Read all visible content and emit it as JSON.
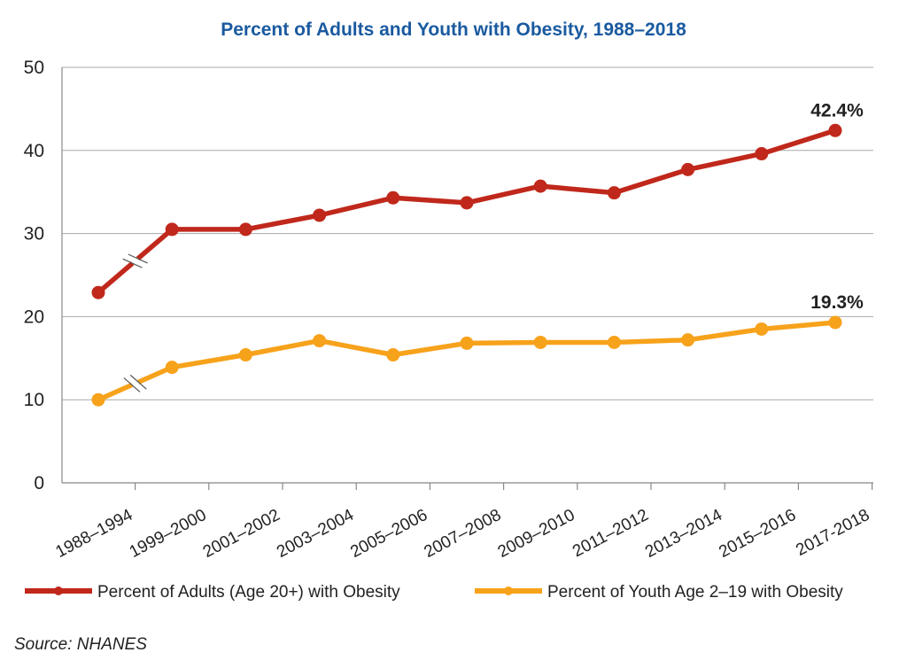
{
  "chart_data": {
    "type": "line",
    "title": "Percent of Adults and Youth with Obesity, 1988–2018",
    "xlabel": "",
    "ylabel": "",
    "ylim": [
      0,
      50
    ],
    "yticks": [
      "0",
      "10",
      "20",
      "30",
      "40",
      "50"
    ],
    "categories": [
      "1988–1994",
      "1999–2000",
      "2001–2002",
      "2003–2004",
      "2005–2006",
      "2007–2008",
      "2009–2010",
      "2011–2012",
      "2013–2014",
      "2015–2016",
      "2017-2018"
    ],
    "grid": true,
    "axis_break_after_first_category": true,
    "legend_position": "bottom",
    "series": [
      {
        "name": "Percent of Adults (Age 20+) with  Obesity",
        "color": "#c0281b",
        "values": [
          22.9,
          30.5,
          30.5,
          32.2,
          34.3,
          33.7,
          35.7,
          34.9,
          37.7,
          39.6,
          42.4
        ],
        "end_label": "42.4%"
      },
      {
        "name": "Percent of Youth Age 2–19 with Obesity",
        "color": "#f7a21b",
        "values": [
          10.0,
          13.9,
          15.4,
          17.1,
          15.4,
          16.8,
          16.9,
          16.9,
          17.2,
          18.5,
          19.3
        ],
        "end_label": "19.3%"
      }
    ],
    "title_color": "#1a5aa0",
    "source": "Source: NHANES"
  }
}
